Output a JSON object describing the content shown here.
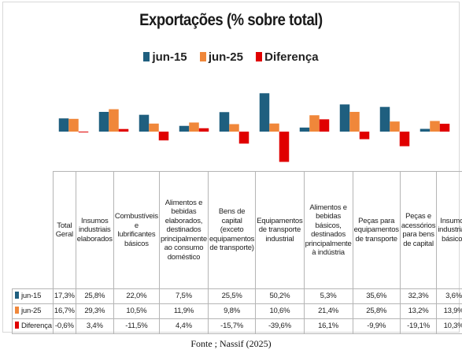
{
  "chart_data": {
    "type": "bar",
    "title": "Exportações (% sobre total)",
    "categories": [
      "Total Geral",
      "Insumos industriais elaborados",
      "Combustíveis e lubrificantes básicos",
      "Alimentos e bebidas elaborados, destinados principalmente ao consumo doméstico",
      "Bens de capital (exceto equipamentos de transporte)",
      "Equipamentos de transporte industrial",
      "Alimentos e bebidas básicos, destinados principalmente à indústria",
      "Peças para equipamentos de transporte",
      "Peças e acessórios para bens de capital",
      "Insumos industriais básicos"
    ],
    "series": [
      {
        "name": "jun-15",
        "color": "#1f5f7f",
        "values": [
          17.3,
          25.8,
          22.0,
          7.5,
          25.5,
          50.2,
          5.3,
          35.6,
          32.3,
          3.6
        ],
        "labels": [
          "17,3%",
          "25,8%",
          "22,0%",
          "7,5%",
          "25,5%",
          "50,2%",
          "5,3%",
          "35,6%",
          "32,3%",
          "3,6%"
        ]
      },
      {
        "name": "jun-25",
        "color": "#f0873a",
        "values": [
          16.7,
          29.3,
          10.5,
          11.9,
          9.8,
          10.6,
          21.4,
          25.8,
          13.2,
          13.9
        ],
        "labels": [
          "16,7%",
          "29,3%",
          "10,5%",
          "11,9%",
          "9,8%",
          "10,6%",
          "21,4%",
          "25,8%",
          "13,2%",
          "13,9%"
        ]
      },
      {
        "name": "Diferença",
        "color": "#e00000",
        "values": [
          -0.6,
          3.4,
          -11.5,
          4.4,
          -15.7,
          -39.6,
          16.1,
          -9.9,
          -19.1,
          10.3
        ],
        "labels": [
          "-0,6%",
          "3,4%",
          "-11,5%",
          "4,4%",
          "-15,7%",
          "-39,6%",
          "16,1%",
          "-9,9%",
          "-19,1%",
          "10,3%"
        ]
      }
    ],
    "ylim": [
      -40,
      55
    ],
    "legend": "top-center",
    "grid": false,
    "data_table": true
  },
  "source": "Fonte ; Nassif (2025)"
}
